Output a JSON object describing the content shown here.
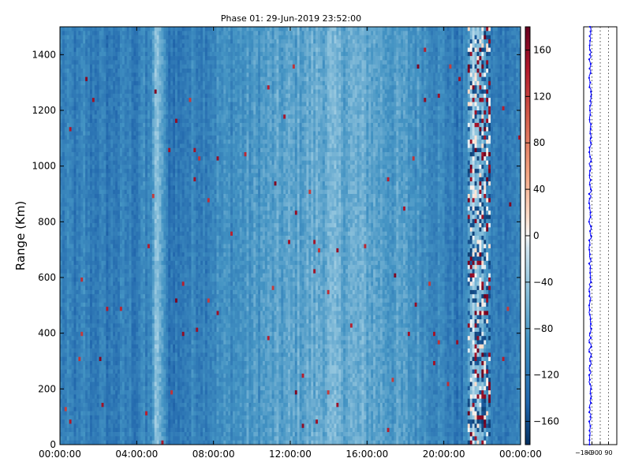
{
  "chart_data": [
    {
      "type": "heatmap",
      "title": "Phase 01: 29-Jun-2019 23:52:00",
      "xlabel": "",
      "ylabel": "Range (Km)",
      "x_tick_labels": [
        "00:00:00",
        "04:00:00",
        "08:00:00",
        "12:00:00",
        "16:00:00",
        "20:00:00",
        "00:00:00"
      ],
      "xlim": [
        "00:00:00",
        "24:00:00"
      ],
      "y_ticks": [
        0,
        200,
        400,
        600,
        800,
        1000,
        1200,
        1400
      ],
      "ylim": [
        0,
        1500
      ],
      "colorbar": {
        "ticks": [
          -160,
          -120,
          -80,
          -40,
          0,
          40,
          80,
          120,
          160
        ],
        "range": [
          -180,
          180
        ],
        "colormap": "RdBu_r"
      },
      "time_profile_hours": [
        0,
        0.25,
        0.5,
        1,
        1.25,
        1.5,
        2,
        2.5,
        3,
        3.5,
        4,
        4.25,
        4.5,
        4.75,
        5,
        5.25,
        5.5,
        5.75,
        6,
        6.25,
        6.5,
        6.75,
        7,
        7.5,
        8,
        9,
        10,
        11,
        12,
        13,
        14,
        15,
        16,
        17,
        18,
        19,
        19.5,
        20,
        20.5,
        21,
        21.5,
        22,
        22.5,
        23,
        24
      ],
      "time_profile_values": [
        -110,
        -118,
        -112,
        -125,
        -105,
        -120,
        -115,
        -122,
        -118,
        -112,
        -120,
        -100,
        -118,
        -95,
        -55,
        -60,
        -112,
        -125,
        -118,
        -130,
        -110,
        -118,
        -105,
        -112,
        -100,
        -95,
        -88,
        -82,
        -78,
        -72,
        -65,
        -68,
        -70,
        -80,
        -86,
        -92,
        -100,
        -108,
        -118,
        -125,
        -40,
        -60,
        -120,
        -115,
        -110
      ]
    },
    {
      "type": "line",
      "x_tick_labels": [
        "−180",
        "−90",
        "0",
        "90"
      ],
      "xlim": [
        -180,
        180
      ],
      "ylim": [
        0,
        1500
      ],
      "grid_x": [
        -90,
        0,
        90
      ],
      "series": [
        {
          "mean": -110,
          "spread": 12,
          "color": "#0000ff"
        }
      ]
    }
  ]
}
